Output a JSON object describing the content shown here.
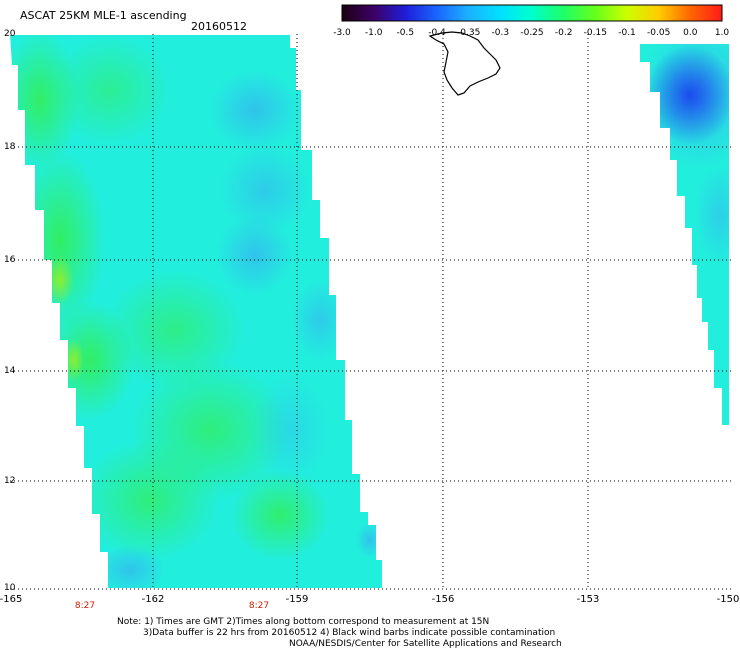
{
  "header": {
    "title": "ASCAT 25KM MLE-1 ascending",
    "date": "20160512"
  },
  "colorbar": {
    "labels": [
      "-3.0",
      "-1.0",
      "-0.5",
      "-0.4",
      "-0.35",
      "-0.3",
      "-0.25",
      "-0.2",
      "-0.15",
      "-0.1",
      "-0.05",
      "0.0",
      "1.0"
    ],
    "colors": [
      "#1a0010",
      "#3d0066",
      "#1e1ed8",
      "#1a66ff",
      "#1ab2ff",
      "#00e0ff",
      "#00ffcc",
      "#1eff66",
      "#66ff1a",
      "#ccff00",
      "#ffcc00",
      "#ff6600",
      "#ff1a1a"
    ]
  },
  "axes": {
    "lat_labels": [
      "20",
      "18",
      "16",
      "14",
      "12",
      "10"
    ],
    "lon_labels": [
      "-165",
      "-162",
      "-159",
      "-156",
      "-153",
      "-150"
    ],
    "time_labels": [
      "8:27",
      "8:27"
    ]
  },
  "notes": {
    "line1": "Note: 1) Times are GMT 2)Times along bottom correspond to measurement at 15N",
    "line2": "3)Data buffer is 22 hrs from 20160512 4) Black wind barbs indicate possible contamination",
    "line3": "NOAA/NESDIS/Center for Satellite Applications and Research"
  },
  "legend_colors": {
    "swath_main": "#22eedd",
    "grid_line": "#000000",
    "time_label": "#cc2200"
  }
}
